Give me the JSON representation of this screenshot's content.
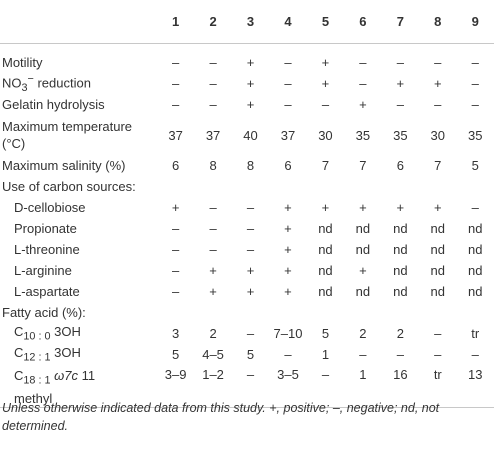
{
  "headers": [
    "",
    "1",
    "2",
    "3",
    "4",
    "5",
    "6",
    "7",
    "8",
    "9"
  ],
  "rows": [
    {
      "label": "Motility",
      "values": [
        "–",
        "–",
        "+",
        "–",
        "+",
        "–",
        "–",
        "–",
        "–"
      ]
    },
    {
      "label_html": "NO<sub>3</sub><sup>−</sup> reduction",
      "label": "NO3− reduction",
      "values": [
        "–",
        "–",
        "+",
        "–",
        "+",
        "–",
        "+",
        "+",
        "–"
      ]
    },
    {
      "label": "Gelatin hydrolysis",
      "values": [
        "–",
        "–",
        "+",
        "–",
        "–",
        "+",
        "–",
        "–",
        "–"
      ]
    },
    {
      "label": "Maximum temperature (°C)",
      "values": [
        "37",
        "37",
        "40",
        "37",
        "30",
        "35",
        "35",
        "30",
        "35"
      ]
    },
    {
      "label": "Maximum salinity (%)",
      "values": [
        "6",
        "8",
        "8",
        "6",
        "7",
        "7",
        "6",
        "7",
        "5"
      ]
    },
    {
      "label": "Use of carbon sources:",
      "values": [
        "",
        "",
        "",
        "",
        "",
        "",
        "",
        "",
        ""
      ]
    },
    {
      "label": "D-cellobiose",
      "values": [
        "+",
        "–",
        "–",
        "+",
        "+",
        "+",
        "+",
        "+",
        "–"
      ]
    },
    {
      "label": "Propionate",
      "values": [
        "–",
        "–",
        "–",
        "+",
        "nd",
        "nd",
        "nd",
        "nd",
        "nd"
      ]
    },
    {
      "label": "L-threonine",
      "values": [
        "–",
        "–",
        "–",
        "+",
        "nd",
        "nd",
        "nd",
        "nd",
        "nd"
      ]
    },
    {
      "label": "L-arginine",
      "values": [
        "–",
        "+",
        "+",
        "+",
        "nd",
        "+",
        "nd",
        "nd",
        "nd"
      ]
    },
    {
      "label": "L-aspartate",
      "values": [
        "–",
        "+",
        "+",
        "+",
        "nd",
        "nd",
        "nd",
        "nd",
        "nd"
      ]
    },
    {
      "label": "Fatty acid (%):",
      "values": [
        "",
        "",
        "",
        "",
        "",
        "",
        "",
        "",
        ""
      ]
    },
    {
      "label": "C10 : 0 3OH",
      "values": [
        "3",
        "2",
        "–",
        "7–10",
        "5",
        "2",
        "2",
        "–",
        "tr"
      ]
    },
    {
      "label": "C12 : 1 3OH",
      "values": [
        "5",
        "4–5",
        "5",
        "–",
        "1",
        "–",
        "–",
        "–",
        "–"
      ]
    },
    {
      "label": "C18 : 1 ω7c 11 methyl",
      "values": [
        "3–9",
        "1–2",
        "–",
        "3–5",
        "–",
        "1",
        "16",
        "tr",
        "13"
      ]
    }
  ],
  "footnote": "Unless otherwise indicated data from this study. +, positive; –, negative; nd, not determined."
}
